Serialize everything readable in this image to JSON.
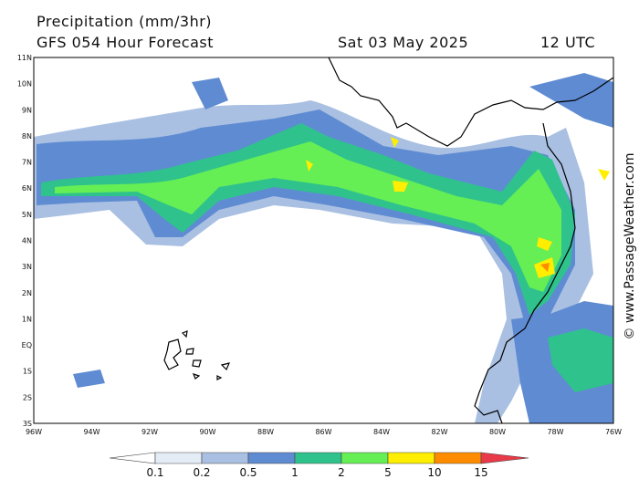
{
  "header": {
    "title": "Precipitation (mm/3hr)",
    "subtitle": "GFS 054 Hour Forecast",
    "date": "Sat 03 May 2025",
    "time": "12 UTC"
  },
  "map": {
    "lat_labels": [
      "11N",
      "10N",
      "9N",
      "8N",
      "7N",
      "6N",
      "5N",
      "4N",
      "3N",
      "2N",
      "1N",
      "EQ",
      "1S",
      "2S",
      "3S"
    ],
    "lon_labels": [
      "96W",
      "94W",
      "92W",
      "90W",
      "88W",
      "86W",
      "84W",
      "82W",
      "80W",
      "78W",
      "76W"
    ]
  },
  "colorbar": {
    "labels": [
      0.1,
      0.2,
      0.5,
      1,
      2,
      5,
      10,
      15
    ],
    "colors": [
      "#ffffff",
      "#e4ecf6",
      "#a9c0e2",
      "#5f8bd2",
      "#2fc28d",
      "#66ee55",
      "#ffee00",
      "#ff8c00",
      "#e83a48"
    ]
  },
  "credit": "© www.PassageWeather.com"
}
